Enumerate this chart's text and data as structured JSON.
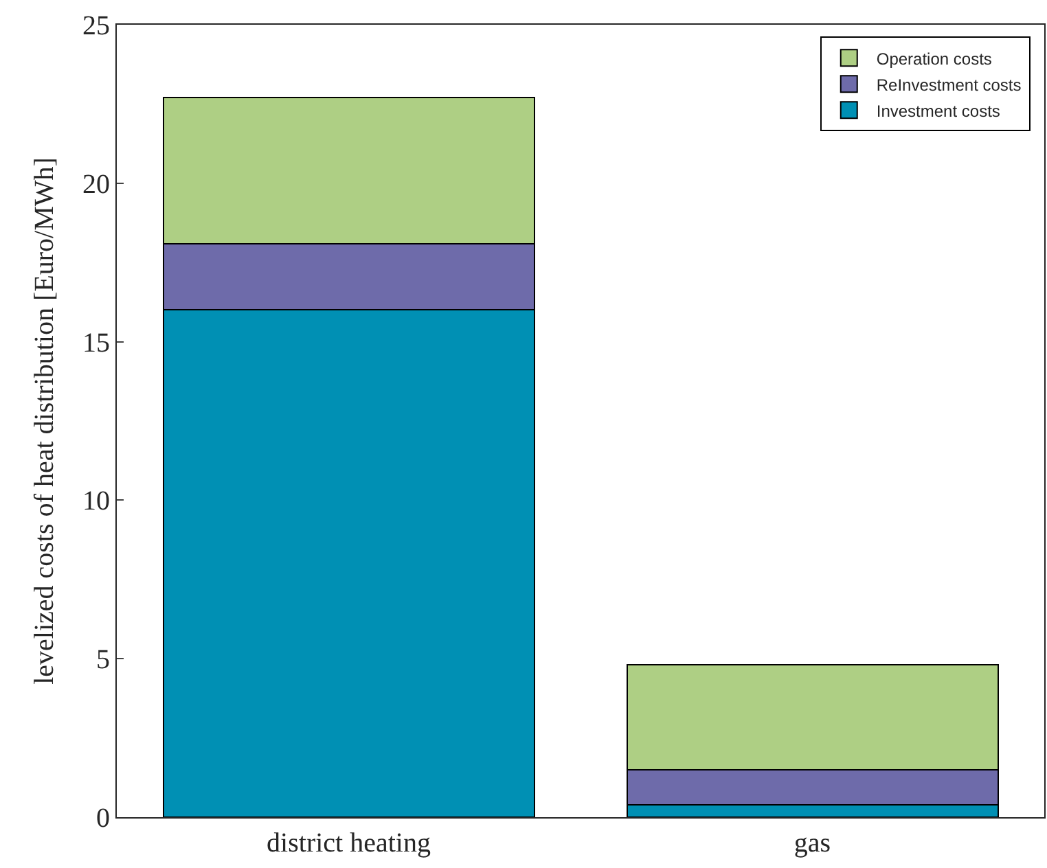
{
  "chart_data": {
    "type": "bar",
    "stacked": true,
    "ylabel": "levelized costs of heat distribution [Euro/MWh]",
    "categories": [
      "district heating",
      "gas"
    ],
    "series": [
      {
        "name": "Investment costs",
        "color": "#0090b4",
        "values": [
          16.0,
          0.4
        ]
      },
      {
        "name": "ReInvestment costs",
        "color": "#6e6baa",
        "values": [
          2.1,
          1.1
        ]
      },
      {
        "name": "Operation costs",
        "color": "#aecf84",
        "values": [
          4.6,
          3.3
        ]
      }
    ],
    "ylim": [
      0,
      25
    ],
    "yticks": [
      0,
      5,
      10,
      15,
      20,
      25
    ],
    "legend": "top right"
  }
}
